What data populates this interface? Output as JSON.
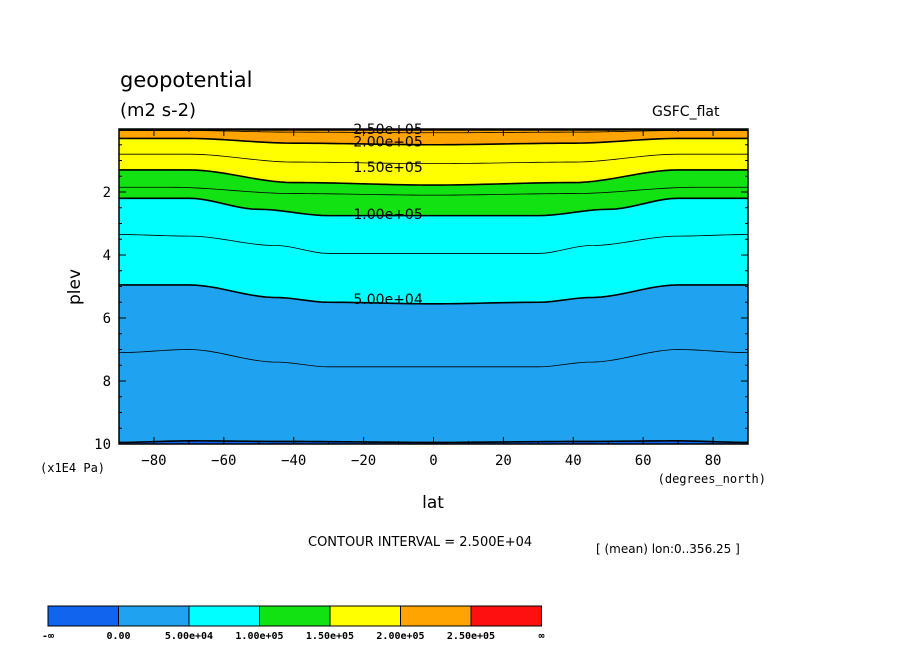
{
  "chart_data": {
    "type": "contour",
    "title": "geopotential",
    "units": "(m2 s-2)",
    "model": "GSFC_flat",
    "xlabel": "lat",
    "xunits": "(degrees_north)",
    "ylabel": "plev",
    "yunits": "(x1E4 Pa)",
    "xlim": [
      -90,
      90
    ],
    "ylim": [
      10,
      0
    ],
    "x_ticks": [
      -80,
      -60,
      -40,
      -20,
      0,
      20,
      40,
      60,
      80
    ],
    "y_ticks": [
      2,
      4,
      6,
      8,
      10
    ],
    "contour_interval_label": "CONTOUR INTERVAL = 2.500E+04",
    "mean_note": "[ (mean) lon:0..356.25 ]",
    "contour_labels": [
      {
        "text": "2.50e+05",
        "lat": -13,
        "plev": 0.0
      },
      {
        "text": "2.00e+05",
        "lat": -13,
        "plev": 0.4
      },
      {
        "text": "1.50e+05",
        "lat": -13,
        "plev": 1.2
      },
      {
        "text": "1.00e+05",
        "lat": -13,
        "plev": 2.7
      },
      {
        "text": "5.00e+04",
        "lat": -13,
        "plev": 5.4
      }
    ],
    "contours": [
      {
        "level": 250000,
        "plev_at_lat": [
          [
            -90,
            0.02
          ],
          [
            -40,
            0.03
          ],
          [
            40,
            0.03
          ],
          [
            90,
            0.02
          ]
        ]
      },
      {
        "level": 225000,
        "plev_at_lat": [
          [
            -90,
            0.05
          ],
          [
            -70,
            0.05
          ],
          [
            -40,
            0.1
          ],
          [
            0,
            0.12
          ],
          [
            40,
            0.1
          ],
          [
            70,
            0.05
          ],
          [
            90,
            0.05
          ]
        ]
      },
      {
        "level": 200000,
        "plev_at_lat": [
          [
            -90,
            0.3
          ],
          [
            -70,
            0.3
          ],
          [
            -40,
            0.45
          ],
          [
            0,
            0.5
          ],
          [
            40,
            0.45
          ],
          [
            70,
            0.3
          ],
          [
            90,
            0.3
          ]
        ]
      },
      {
        "level": 175000,
        "plev_at_lat": [
          [
            -90,
            0.8
          ],
          [
            -70,
            0.8
          ],
          [
            -40,
            1.05
          ],
          [
            0,
            1.1
          ],
          [
            40,
            1.05
          ],
          [
            70,
            0.8
          ],
          [
            90,
            0.8
          ]
        ]
      },
      {
        "level": 150000,
        "plev_at_lat": [
          [
            -90,
            1.3
          ],
          [
            -70,
            1.3
          ],
          [
            -40,
            1.7
          ],
          [
            0,
            1.78
          ],
          [
            40,
            1.7
          ],
          [
            70,
            1.3
          ],
          [
            90,
            1.3
          ]
        ]
      },
      {
        "level": 125000,
        "plev_at_lat": [
          [
            -90,
            1.85
          ],
          [
            -75,
            1.85
          ],
          [
            -40,
            2.05
          ],
          [
            0,
            2.1
          ],
          [
            40,
            2.05
          ],
          [
            75,
            1.85
          ],
          [
            90,
            1.85
          ]
        ]
      },
      {
        "level": 100000,
        "plev_at_lat": [
          [
            -90,
            2.2
          ],
          [
            -70,
            2.2
          ],
          [
            -50,
            2.55
          ],
          [
            -30,
            2.75
          ],
          [
            0,
            2.75
          ],
          [
            30,
            2.75
          ],
          [
            50,
            2.55
          ],
          [
            70,
            2.2
          ],
          [
            90,
            2.2
          ]
        ]
      },
      {
        "level": 75000,
        "plev_at_lat": [
          [
            -90,
            3.35
          ],
          [
            -70,
            3.4
          ],
          [
            -45,
            3.7
          ],
          [
            -30,
            3.95
          ],
          [
            0,
            3.95
          ],
          [
            30,
            3.95
          ],
          [
            45,
            3.7
          ],
          [
            70,
            3.4
          ],
          [
            90,
            3.35
          ]
        ]
      },
      {
        "level": 50000,
        "plev_at_lat": [
          [
            -90,
            4.95
          ],
          [
            -70,
            4.95
          ],
          [
            -45,
            5.35
          ],
          [
            -30,
            5.5
          ],
          [
            0,
            5.55
          ],
          [
            30,
            5.5
          ],
          [
            45,
            5.35
          ],
          [
            70,
            4.95
          ],
          [
            90,
            4.95
          ]
        ]
      },
      {
        "level": 25000,
        "plev_at_lat": [
          [
            -90,
            7.1
          ],
          [
            -70,
            7.0
          ],
          [
            -45,
            7.4
          ],
          [
            -30,
            7.55
          ],
          [
            0,
            7.55
          ],
          [
            30,
            7.55
          ],
          [
            45,
            7.4
          ],
          [
            70,
            7.0
          ],
          [
            90,
            7.1
          ]
        ]
      },
      {
        "level": 0,
        "plev_at_lat": [
          [
            -90,
            9.95
          ],
          [
            -70,
            9.9
          ],
          [
            -40,
            9.92
          ],
          [
            0,
            9.95
          ],
          [
            40,
            9.92
          ],
          [
            70,
            9.9
          ],
          [
            90,
            9.95
          ]
        ]
      }
    ],
    "colorbar": {
      "colors": [
        "#1164ee",
        "#1fa3f0",
        "#00ffff",
        "#12e212",
        "#ffff00",
        "#ffa400",
        "#ff1010"
      ],
      "labels": [
        "-∞",
        "0.00",
        "5.00e+04",
        "1.00e+05",
        "1.50e+05",
        "2.00e+05",
        "2.50e+05",
        "∞"
      ]
    },
    "fill_colors": {
      "below_0": "#1164ee",
      "0_50000": "#1fa3f0",
      "50000_100000": "#00ffff",
      "100000_150000": "#12e212",
      "150000_200000": "#ffff00",
      "200000_250000": "#ffa400",
      "above_250000": "#ff1010"
    }
  }
}
